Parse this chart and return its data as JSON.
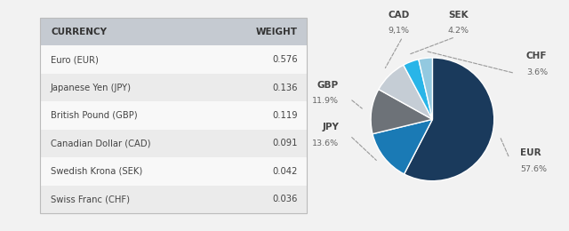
{
  "table_headers": [
    "CURRENCY",
    "WEIGHT"
  ],
  "table_rows": [
    [
      "Euro (EUR)",
      "0.576"
    ],
    [
      "Japanese Yen (JPY)",
      "0.136"
    ],
    [
      "British Pound (GBP)",
      "0.119"
    ],
    [
      "Canadian Dollar (CAD)",
      "0.091"
    ],
    [
      "Swedish Krona (SEK)",
      "0.042"
    ],
    [
      "Swiss Franc (CHF)",
      "0.036"
    ]
  ],
  "pie_labels": [
    "EUR",
    "JPY",
    "GBP",
    "CAD",
    "SEK",
    "CHF"
  ],
  "pie_values": [
    57.6,
    13.6,
    11.9,
    9.1,
    4.2,
    3.6
  ],
  "pie_colors": [
    "#1a3a5c",
    "#1a7ab5",
    "#6d7278",
    "#c5cdd5",
    "#29b5e8",
    "#93c9e0"
  ],
  "pie_label_percents": [
    "57.6%",
    "13.6%",
    "11.9%",
    "9,1%",
    "4.2%",
    "3.6%"
  ],
  "background_color": "#f2f2f2",
  "table_header_bg": "#c5cad1",
  "table_row_bg_even": "#f8f8f8",
  "table_row_bg_odd": "#ebebeb",
  "header_font_color": "#333333",
  "row_font_color": "#444444",
  "label_color": "#666666",
  "label_bold_color": "#444444"
}
